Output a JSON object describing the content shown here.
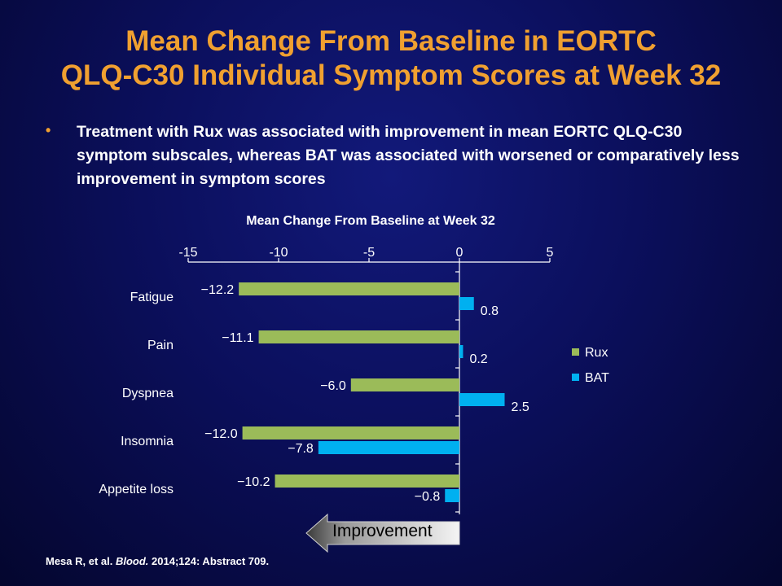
{
  "title": {
    "line1": "Mean Change From Baseline in EORTC",
    "line2": "QLQ-C30 Individual Symptom Scores at Week 32"
  },
  "bullet": "Treatment with Rux was associated with improvement in mean EORTC QLQ-C30 symptom subscales, whereas BAT was associated with worsened or comparatively less improvement in symptom scores",
  "citation": {
    "authors": "Mesa R, et al. ",
    "journal": "Blood.",
    "details": " 2014;124: Abstract 709."
  },
  "improvement_label": "Improvement",
  "colors": {
    "title": "#f0a030",
    "rux": "#9bbb59",
    "bat": "#00b0f0",
    "text": "#ffffff"
  },
  "chart_data": {
    "type": "bar",
    "orientation": "horizontal",
    "title": "Mean Change From Baseline at Week 32",
    "categories": [
      "Fatigue",
      "Pain",
      "Dyspnea",
      "Insomnia",
      "Appetite loss"
    ],
    "series": [
      {
        "name": "Rux",
        "values": [
          -12.2,
          -11.1,
          -6.0,
          -12.0,
          -10.2
        ],
        "labels": [
          "−12.2",
          "−11.1",
          "−6.0",
          "−12.0",
          "−10.2"
        ]
      },
      {
        "name": "BAT",
        "values": [
          0.8,
          0.2,
          2.5,
          -7.8,
          -0.8
        ],
        "labels": [
          "0.8",
          "0.2",
          "2.5",
          "−7.8",
          "−0.8"
        ]
      }
    ],
    "xlim": [
      -15,
      5
    ],
    "xticks": [
      -15,
      -10,
      -5,
      0,
      5
    ],
    "xtick_labels": [
      "-15",
      "-10",
      "-5",
      "0",
      "5"
    ],
    "axis_position": "top",
    "legend_position": "right",
    "grid": false
  }
}
